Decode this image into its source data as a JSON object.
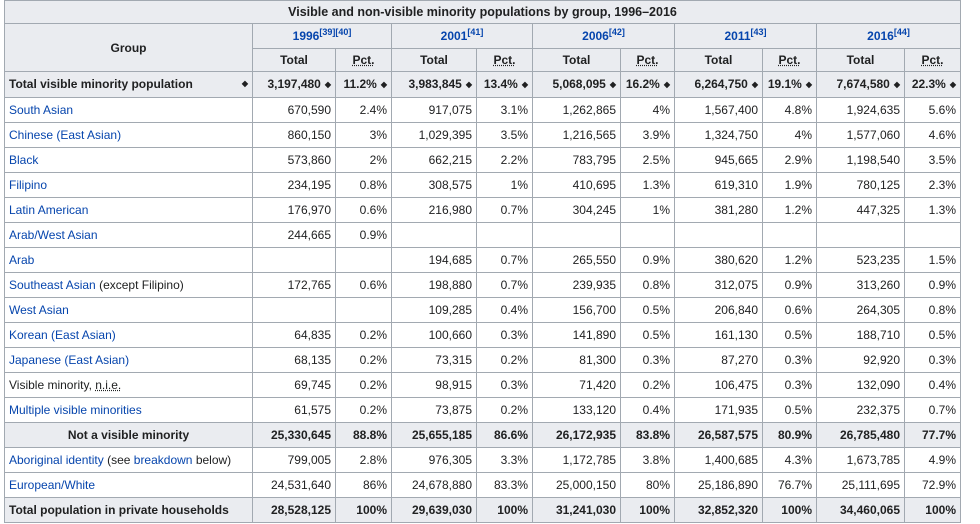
{
  "caption": "Visible and non-visible minority populations by group, 1996–2016",
  "header": {
    "group": "Group",
    "years": [
      {
        "year": "1996",
        "ref": "[39][40]"
      },
      {
        "year": "2001",
        "ref": "[41]"
      },
      {
        "year": "2006",
        "ref": "[42]"
      },
      {
        "year": "2011",
        "ref": "[43]"
      },
      {
        "year": "2016",
        "ref": "[44]"
      }
    ],
    "total": "Total",
    "pct": "Pct."
  },
  "sort_icon": "sort-icon",
  "rows": [
    {
      "g": "Total visible minority population",
      "v": [
        "3,197,480",
        "11.2%",
        "3,983,845",
        "13.4%",
        "5,068,095",
        "16.2%",
        "6,264,750",
        "19.1%",
        "7,674,580",
        "22.3%"
      ]
    },
    {
      "g": "South Asian",
      "v": [
        "670,590",
        "2.4%",
        "917,075",
        "3.1%",
        "1,262,865",
        "4%",
        "1,567,400",
        "4.8%",
        "1,924,635",
        "5.6%"
      ]
    },
    {
      "g": "Chinese",
      "gsuffix": "(East Asian)",
      "v": [
        "860,150",
        "3%",
        "1,029,395",
        "3.5%",
        "1,216,565",
        "3.9%",
        "1,324,750",
        "4%",
        "1,577,060",
        "4.6%"
      ]
    },
    {
      "g": "Black",
      "v": [
        "573,860",
        "2%",
        "662,215",
        "2.2%",
        "783,795",
        "2.5%",
        "945,665",
        "2.9%",
        "1,198,540",
        "3.5%"
      ]
    },
    {
      "g": "Filipino",
      "v": [
        "234,195",
        "0.8%",
        "308,575",
        "1%",
        "410,695",
        "1.3%",
        "619,310",
        "1.9%",
        "780,125",
        "2.3%"
      ]
    },
    {
      "g": "Latin American",
      "v": [
        "176,970",
        "0.6%",
        "216,980",
        "0.7%",
        "304,245",
        "1%",
        "381,280",
        "1.2%",
        "447,325",
        "1.3%"
      ]
    },
    {
      "g": "Arab/West Asian",
      "v": [
        "244,665",
        "0.9%",
        "",
        "",
        "",
        "",
        "",
        "",
        "",
        ""
      ]
    },
    {
      "g": "Arab",
      "v": [
        "",
        "",
        "194,685",
        "0.7%",
        "265,550",
        "0.9%",
        "380,620",
        "1.2%",
        "523,235",
        "1.5%"
      ]
    },
    {
      "g": "Southeast Asian",
      "gplain": "(except Filipino)",
      "v": [
        "172,765",
        "0.6%",
        "198,880",
        "0.7%",
        "239,935",
        "0.8%",
        "312,075",
        "0.9%",
        "313,260",
        "0.9%"
      ]
    },
    {
      "g": "West Asian",
      "v": [
        "",
        "",
        "109,285",
        "0.4%",
        "156,700",
        "0.5%",
        "206,840",
        "0.6%",
        "264,305",
        "0.8%"
      ]
    },
    {
      "g": "Korean",
      "gsuffix": "(East Asian)",
      "v": [
        "64,835",
        "0.2%",
        "100,660",
        "0.3%",
        "141,890",
        "0.5%",
        "161,130",
        "0.5%",
        "188,710",
        "0.5%"
      ]
    },
    {
      "g": "Japanese",
      "gsuffix": "(East Asian)",
      "v": [
        "68,135",
        "0.2%",
        "73,315",
        "0.2%",
        "81,300",
        "0.3%",
        "87,270",
        "0.3%",
        "92,920",
        "0.3%"
      ]
    },
    {
      "g": "Visible minority, ",
      "gabbr": "n.i.e.",
      "v": [
        "69,745",
        "0.2%",
        "98,915",
        "0.3%",
        "71,420",
        "0.2%",
        "106,475",
        "0.3%",
        "132,090",
        "0.4%"
      ]
    },
    {
      "g": "Multiple visible minorities",
      "v": [
        "61,575",
        "0.2%",
        "73,875",
        "0.2%",
        "133,120",
        "0.4%",
        "171,935",
        "0.5%",
        "232,375",
        "0.7%"
      ]
    },
    {
      "g": "Not a visible minority",
      "v": [
        "25,330,645",
        "88.8%",
        "25,655,185",
        "86.6%",
        "26,172,935",
        "83.8%",
        "26,587,575",
        "80.9%",
        "26,785,480",
        "77.7%"
      ]
    },
    {
      "g": "Aboriginal identity",
      "gplain": "(see",
      "glink2": "breakdown",
      "gplain2": "below)",
      "v": [
        "799,005",
        "2.8%",
        "976,305",
        "3.3%",
        "1,172,785",
        "3.8%",
        "1,400,685",
        "4.3%",
        "1,673,785",
        "4.9%"
      ]
    },
    {
      "g": "European/White",
      "v": [
        "24,531,640",
        "86%",
        "24,678,880",
        "83.3%",
        "25,000,150",
        "80%",
        "25,186,890",
        "76.7%",
        "25,111,695",
        "72.9%"
      ]
    },
    {
      "g": "Total population in private households",
      "v": [
        "28,528,125",
        "100%",
        "29,639,030",
        "100%",
        "31,241,030",
        "100%",
        "32,852,320",
        "100%",
        "34,460,065",
        "100%"
      ]
    }
  ]
}
